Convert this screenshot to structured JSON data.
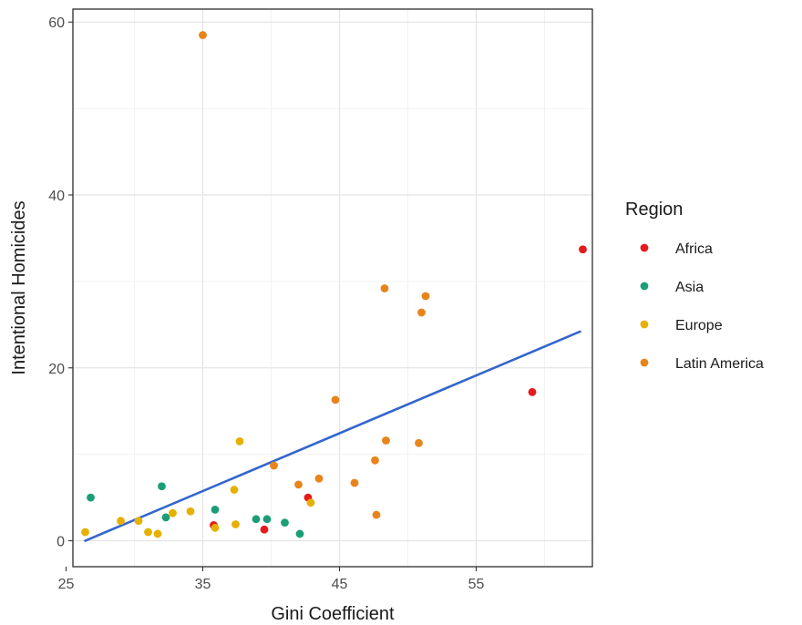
{
  "chart_data": {
    "type": "scatter",
    "title": "",
    "xlabel": "Gini Coefficient",
    "ylabel": "Intentional Homicides",
    "xlim": [
      25.5,
      63.5
    ],
    "ylim": [
      -3,
      61.5
    ],
    "x_ticks": [
      25,
      35,
      45,
      55
    ],
    "y_ticks": [
      0,
      20,
      40,
      60
    ],
    "grid": true,
    "legend": {
      "title": "Region",
      "position": "right"
    },
    "series": [
      {
        "name": "Africa",
        "color": "#e41a1c",
        "points": [
          {
            "x": 62.8,
            "y": 33.7
          },
          {
            "x": 59.1,
            "y": 17.2
          },
          {
            "x": 42.7,
            "y": 5.0
          },
          {
            "x": 35.8,
            "y": 1.8
          },
          {
            "x": 39.5,
            "y": 1.3
          }
        ]
      },
      {
        "name": "Asia",
        "color": "#1b9e77",
        "points": [
          {
            "x": 26.8,
            "y": 5.0
          },
          {
            "x": 32.0,
            "y": 6.3
          },
          {
            "x": 32.3,
            "y": 2.7
          },
          {
            "x": 35.9,
            "y": 3.6
          },
          {
            "x": 38.9,
            "y": 2.5
          },
          {
            "x": 39.7,
            "y": 2.5
          },
          {
            "x": 41.0,
            "y": 2.1
          },
          {
            "x": 42.1,
            "y": 0.8
          }
        ]
      },
      {
        "name": "Europe",
        "color": "#e6b000",
        "points": [
          {
            "x": 26.4,
            "y": 1.0
          },
          {
            "x": 29.0,
            "y": 2.3
          },
          {
            "x": 30.3,
            "y": 2.3
          },
          {
            "x": 31.0,
            "y": 1.0
          },
          {
            "x": 31.7,
            "y": 0.8
          },
          {
            "x": 32.8,
            "y": 3.2
          },
          {
            "x": 34.1,
            "y": 3.4
          },
          {
            "x": 35.9,
            "y": 1.5
          },
          {
            "x": 37.3,
            "y": 5.9
          },
          {
            "x": 37.4,
            "y": 1.9
          },
          {
            "x": 37.7,
            "y": 11.5
          },
          {
            "x": 42.9,
            "y": 4.4
          }
        ]
      },
      {
        "name": "Latin America",
        "color": "#e8841a",
        "points": [
          {
            "x": 35.0,
            "y": 58.5
          },
          {
            "x": 40.2,
            "y": 8.7
          },
          {
            "x": 42.0,
            "y": 6.5
          },
          {
            "x": 43.5,
            "y": 7.2
          },
          {
            "x": 44.7,
            "y": 16.3
          },
          {
            "x": 46.1,
            "y": 6.7
          },
          {
            "x": 47.6,
            "y": 9.3
          },
          {
            "x": 47.7,
            "y": 3.0
          },
          {
            "x": 48.3,
            "y": 29.2
          },
          {
            "x": 48.4,
            "y": 11.6
          },
          {
            "x": 50.8,
            "y": 11.3
          },
          {
            "x": 51.0,
            "y": 26.4
          },
          {
            "x": 51.3,
            "y": 28.3
          }
        ]
      }
    ],
    "trendline": {
      "type": "linear",
      "color": "#3366cc",
      "points": [
        {
          "x": 26.4,
          "y": 0.0
        },
        {
          "x": 62.6,
          "y": 24.2
        }
      ]
    }
  }
}
